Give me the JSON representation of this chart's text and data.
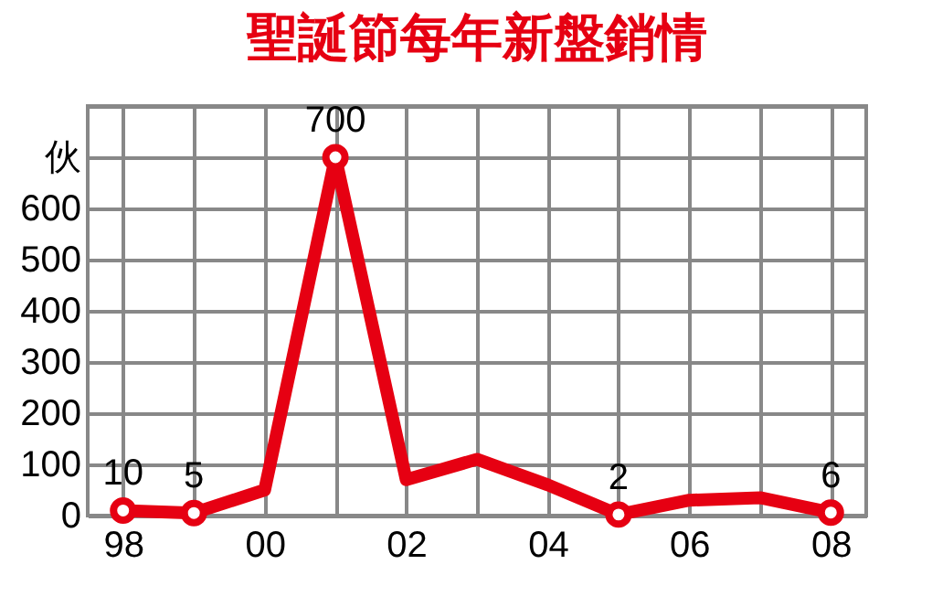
{
  "chart_data": {
    "type": "line",
    "title": "聖誕節每年新盤銷情",
    "categories": [
      "98",
      null,
      "00",
      null,
      "02",
      null,
      "04",
      null,
      "06",
      null,
      "08"
    ],
    "series": [
      {
        "color": "#e60012",
        "values": [
          10,
          5,
          50,
          700,
          70,
          110,
          60,
          2,
          30,
          35,
          6
        ],
        "value_labels": [
          "10",
          "5",
          null,
          "700",
          null,
          null,
          null,
          "2",
          null,
          null,
          "6"
        ]
      }
    ],
    "ylim": [
      0,
      800
    ],
    "yticks": [
      0,
      100,
      200,
      300,
      400,
      500,
      600,
      {
        "value": 700,
        "label": "伙"
      },
      {
        "value": 800,
        "label": null
      }
    ],
    "grid": true,
    "line_style": "solid"
  }
}
